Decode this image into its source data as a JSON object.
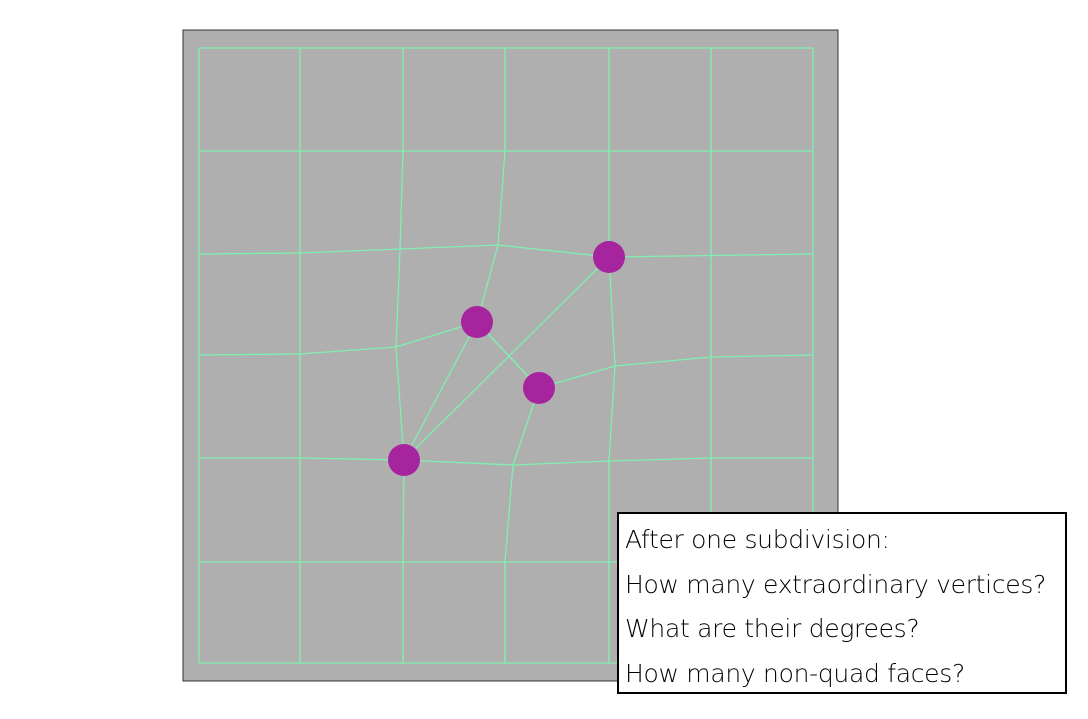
{
  "colors": {
    "canvas_background": "#afafaf",
    "canvas_border": "#333333",
    "mesh_edge": "#7ff0b0",
    "extraordinary_vertex": "#a6259f",
    "text": "#000000",
    "box_border": "#000000"
  },
  "questions": {
    "line_1": "After one subdivision:",
    "line_2": "How many extraordinary vertices?",
    "line_3": "What are their degrees?",
    "line_4": "How many non-quad faces?"
  }
}
